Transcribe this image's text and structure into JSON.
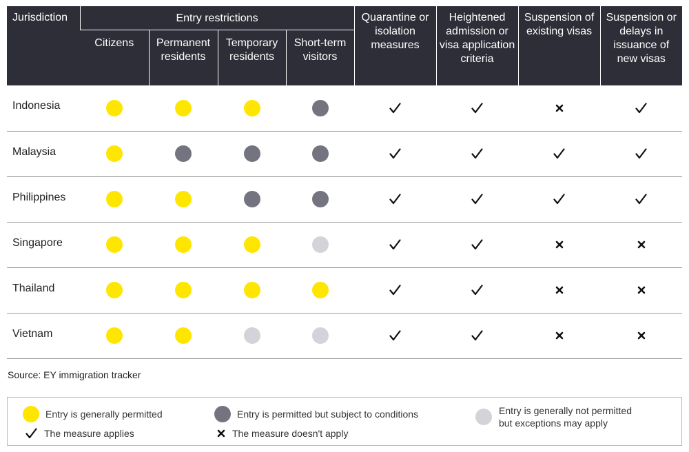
{
  "header": {
    "jurisdiction": "Jurisdiction",
    "entry_restrictions": "Entry restrictions",
    "citizens": "Citizens",
    "permanent_residents": "Permanent residents",
    "temporary_residents": "Temporary residents",
    "short_term_visitors": "Short-term visitors",
    "quarantine": "Quarantine or isolation measures",
    "heightened": "Heightened admission or visa application criteria",
    "suspension_existing": "Suspension of existing visas",
    "suspension_new": "Suspension or delays in issuance of new visas"
  },
  "colors": {
    "permitted": "#ffe600",
    "conditions": "#747480",
    "not_permitted": "#d3d3da",
    "header_bg": "#2e2e38"
  },
  "rows": [
    {
      "jurisdiction": "Indonesia",
      "citizens": "permitted",
      "permanent": "permitted",
      "temporary": "permitted",
      "visitors": "conditions",
      "quarantine": "applies",
      "heightened": "applies",
      "suspension_existing": "not-applies",
      "suspension_new": "applies"
    },
    {
      "jurisdiction": "Malaysia",
      "citizens": "permitted",
      "permanent": "conditions",
      "temporary": "conditions",
      "visitors": "conditions",
      "quarantine": "applies",
      "heightened": "applies",
      "suspension_existing": "applies",
      "suspension_new": "applies"
    },
    {
      "jurisdiction": "Philippines",
      "citizens": "permitted",
      "permanent": "permitted",
      "temporary": "conditions",
      "visitors": "conditions",
      "quarantine": "applies",
      "heightened": "applies",
      "suspension_existing": "applies",
      "suspension_new": "applies"
    },
    {
      "jurisdiction": "Singapore",
      "citizens": "permitted",
      "permanent": "permitted",
      "temporary": "permitted",
      "visitors": "not-permitted",
      "quarantine": "applies",
      "heightened": "applies",
      "suspension_existing": "not-applies",
      "suspension_new": "not-applies"
    },
    {
      "jurisdiction": "Thailand",
      "citizens": "permitted",
      "permanent": "permitted",
      "temporary": "permitted",
      "visitors": "permitted",
      "quarantine": "applies",
      "heightened": "applies",
      "suspension_existing": "not-applies",
      "suspension_new": "not-applies"
    },
    {
      "jurisdiction": "Vietnam",
      "citizens": "permitted",
      "permanent": "permitted",
      "temporary": "not-permitted",
      "visitors": "not-permitted",
      "quarantine": "applies",
      "heightened": "applies",
      "suspension_existing": "not-applies",
      "suspension_new": "not-applies"
    }
  ],
  "source": "Source: EY immigration tracker",
  "legend": {
    "permitted": "Entry is generally permitted",
    "conditions": "Entry is permitted but subject to conditions",
    "not_permitted_line1": "Entry is generally not permitted",
    "not_permitted_line2": "but exceptions may apply",
    "applies": "The measure applies",
    "not_applies": "The measure doesn't apply"
  }
}
